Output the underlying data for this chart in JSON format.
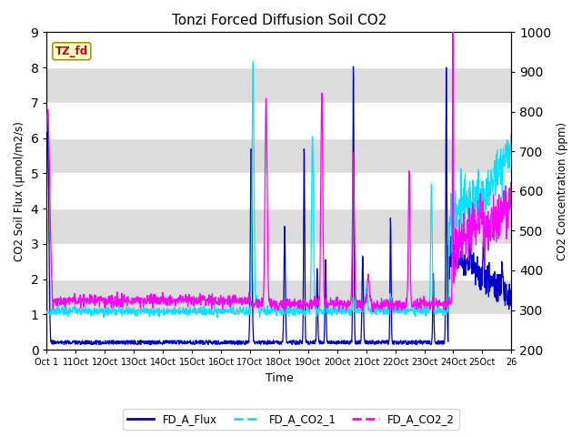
{
  "title": "Tonzi Forced Diffusion Soil CO2",
  "xlabel": "Time",
  "ylabel_left": "CO2 Soil Flux (μmol/m2/s)",
  "ylabel_right": "CO2 Concentration (ppm)",
  "ylim_left": [
    0.0,
    9.0
  ],
  "ylim_right": [
    200,
    1000
  ],
  "x_tick_labels": [
    "Oct 1",
    "11Oct",
    "12Oct",
    "13Oct",
    "14Oct",
    "15Oct",
    "16Oct",
    "17Oct",
    "18Oct",
    "19Oct",
    "20Oct",
    "21Oct",
    "22Oct",
    "23Oct",
    "24Oct",
    "25Oct",
    "26"
  ],
  "flux_color": "#0000cc",
  "co2_1_color": "#00e5ff",
  "co2_2_color": "#ff00ff",
  "legend_labels": [
    "FD_A_Flux",
    "FD_A_CO2_1",
    "FD_A_CO2_2"
  ],
  "tag_text": "TZ_fd",
  "tag_bg": "#ffffcc",
  "tag_fg": "#cc0000",
  "plot_bg": "#f0f0f0",
  "band_color": "#dcdcdc",
  "n_points": 1500
}
